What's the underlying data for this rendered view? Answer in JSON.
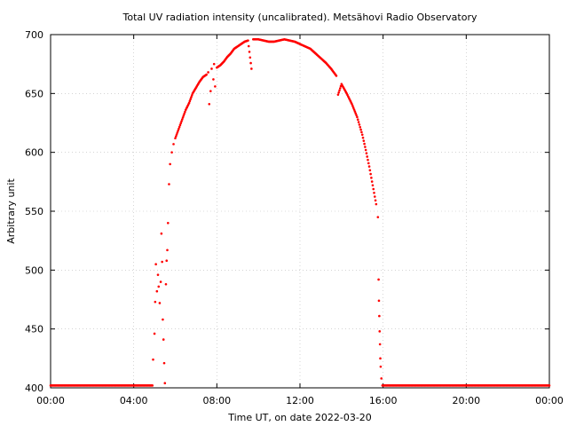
{
  "chart_data": {
    "type": "scatter",
    "title": "Total UV radiation intensity (uncalibrated). Metsähovi Radio Observatory",
    "xlabel": "Time UT, on date 2022-03-20",
    "ylabel": "Arbitrary unit",
    "xlim": [
      "00:00",
      "24:00"
    ],
    "ylim": [
      400,
      700
    ],
    "x_ticks": [
      "00:00",
      "04:00",
      "08:00",
      "12:00",
      "16:00",
      "20:00",
      "00:00"
    ],
    "y_ticks": [
      400,
      450,
      500,
      550,
      600,
      650,
      700
    ],
    "grid": true,
    "point_color": "#ff0000",
    "series": [
      {
        "values": [
          [
            "00:00",
            402
          ],
          [
            "04:54",
            402
          ],
          [
            "04:56",
            424
          ],
          [
            "05:00",
            446
          ],
          [
            "05:02",
            473
          ],
          [
            "05:04",
            505
          ],
          [
            "05:07",
            482
          ],
          [
            "05:10",
            496
          ],
          [
            "05:12",
            486
          ],
          [
            "05:15",
            472
          ],
          [
            "05:18",
            490
          ],
          [
            "05:20",
            531
          ],
          [
            "05:22",
            507
          ],
          [
            "05:24",
            458
          ],
          [
            "05:26",
            441
          ],
          [
            "05:28",
            421
          ],
          [
            "05:30",
            404
          ],
          [
            "05:33",
            488
          ],
          [
            "05:35",
            508
          ],
          [
            "05:37",
            517
          ],
          [
            "05:39",
            540
          ],
          [
            "05:42",
            573
          ],
          [
            "05:45",
            590
          ],
          [
            "05:50",
            600
          ],
          [
            "05:55",
            607
          ],
          [
            "06:00",
            612
          ],
          [
            "06:10",
            620
          ],
          [
            "06:20",
            628
          ],
          [
            "06:30",
            636
          ],
          [
            "06:40",
            642
          ],
          [
            "06:50",
            650
          ],
          [
            "07:00",
            655
          ],
          [
            "07:10",
            660
          ],
          [
            "07:20",
            664
          ],
          [
            "07:30",
            666
          ],
          [
            "07:35",
            668
          ],
          [
            "07:38",
            641
          ],
          [
            "07:42",
            652
          ],
          [
            "07:45",
            671
          ],
          [
            "07:50",
            662
          ],
          [
            "07:52",
            675
          ],
          [
            "07:55",
            656
          ],
          [
            "08:00",
            672
          ],
          [
            "08:10",
            674
          ],
          [
            "08:20",
            677
          ],
          [
            "08:30",
            681
          ],
          [
            "08:40",
            684
          ],
          [
            "08:50",
            688
          ],
          [
            "09:00",
            690
          ],
          [
            "09:10",
            692
          ],
          [
            "09:20",
            694
          ],
          [
            "09:30",
            695
          ],
          [
            "09:40",
            671
          ],
          [
            "09:45",
            696
          ],
          [
            "10:00",
            696
          ],
          [
            "10:15",
            695
          ],
          [
            "10:30",
            694
          ],
          [
            "10:45",
            694
          ],
          [
            "11:00",
            695
          ],
          [
            "11:15",
            696
          ],
          [
            "11:30",
            695
          ],
          [
            "11:45",
            694
          ],
          [
            "12:00",
            692
          ],
          [
            "12:15",
            690
          ],
          [
            "12:30",
            688
          ],
          [
            "12:45",
            684
          ],
          [
            "13:00",
            680
          ],
          [
            "13:15",
            676
          ],
          [
            "13:30",
            671
          ],
          [
            "13:45",
            665
          ],
          [
            "13:50",
            649
          ],
          [
            "14:00",
            658
          ],
          [
            "14:15",
            650
          ],
          [
            "14:30",
            641
          ],
          [
            "14:45",
            630
          ],
          [
            "15:00",
            615
          ],
          [
            "15:10",
            602
          ],
          [
            "15:20",
            588
          ],
          [
            "15:30",
            572
          ],
          [
            "15:40",
            556
          ],
          [
            "15:45",
            545
          ],
          [
            "15:47",
            492
          ],
          [
            "15:48",
            474
          ],
          [
            "15:49",
            461
          ],
          [
            "15:50",
            448
          ],
          [
            "15:51",
            437
          ],
          [
            "15:52",
            425
          ],
          [
            "15:53",
            418
          ],
          [
            "15:55",
            408
          ],
          [
            "15:58",
            402
          ],
          [
            "16:00",
            402
          ],
          [
            "24:00",
            402
          ]
        ]
      }
    ]
  }
}
